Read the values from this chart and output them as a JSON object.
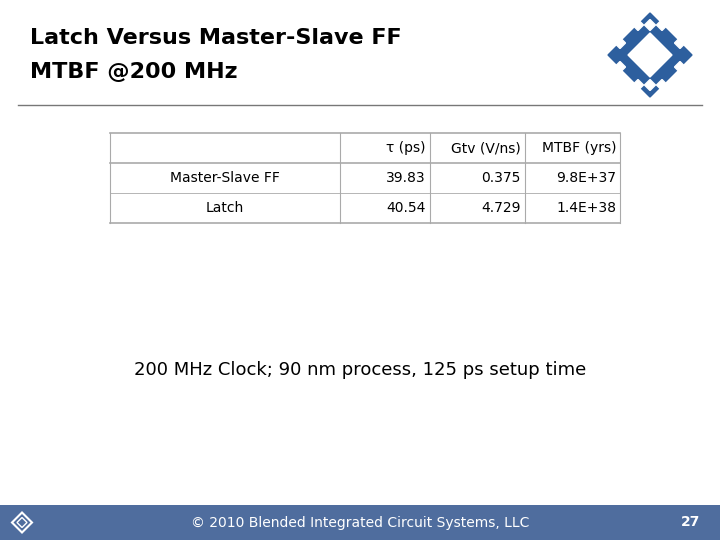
{
  "title_line1": "Latch Versus Master-Slave FF",
  "title_line2": "MTBF @200 MHz",
  "title_fontsize": 16,
  "bg_color": "#ffffff",
  "header_row": [
    "τ (ps)",
    "Gtv (V/ns)",
    "MTBF (yrs)"
  ],
  "row_labels": [
    "Master-Slave FF",
    "Latch"
  ],
  "table_data": [
    [
      "39.83",
      "0.375",
      "9.8E+37"
    ],
    [
      "40.54",
      "4.729",
      "1.4E+38"
    ]
  ],
  "subtitle": "200 MHz Clock; 90 nm process, 125 ps setup time",
  "subtitle_fontsize": 13,
  "footer_text": "© 2010 Blended Integrated Circuit Systems, LLC",
  "footer_page": "27",
  "footer_bg": "#4f6d9e",
  "footer_fg": "#ffffff",
  "footer_fontsize": 10,
  "separator_color": "#777777",
  "logo_color": "#2d5f9e",
  "table_fontsize": 10,
  "table_header_fontsize": 10
}
